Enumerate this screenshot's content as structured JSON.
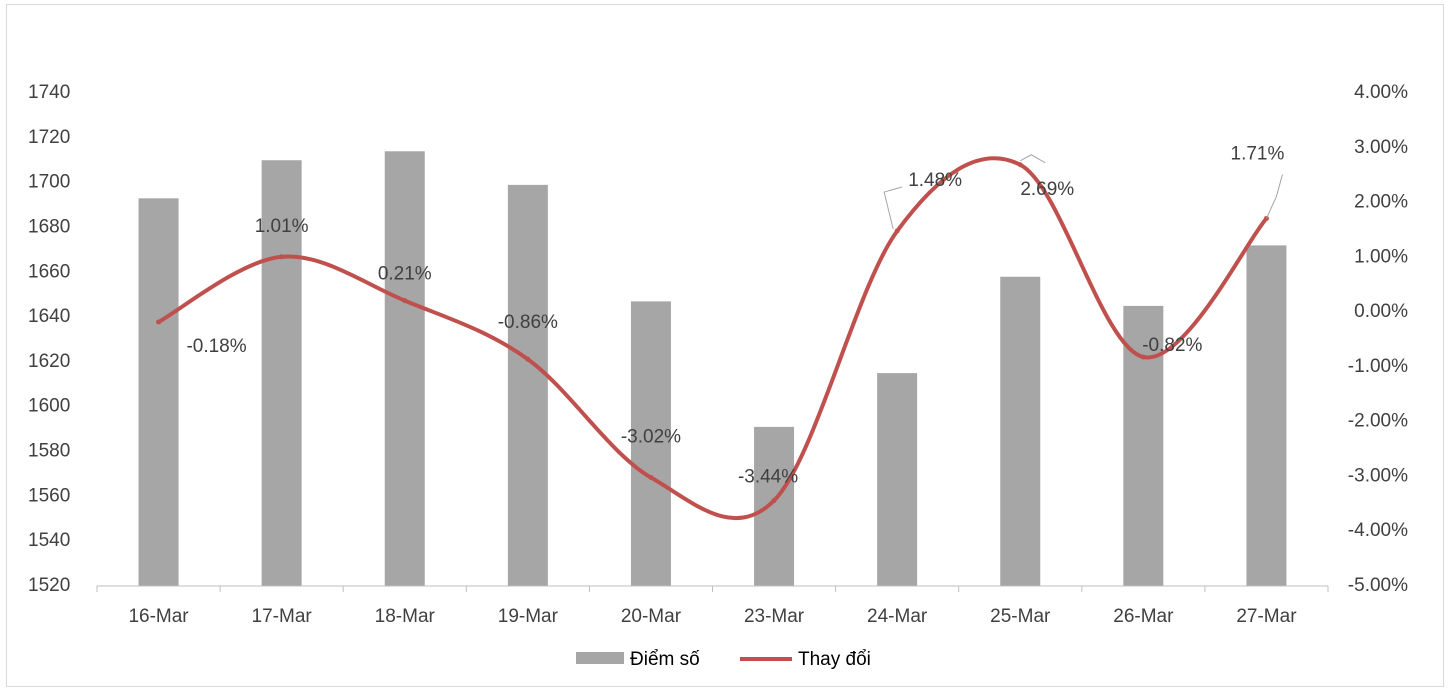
{
  "chart_data": {
    "type": "bar",
    "categories": [
      "16-Mar",
      "17-Mar",
      "18-Mar",
      "19-Mar",
      "20-Mar",
      "23-Mar",
      "24-Mar",
      "25-Mar",
      "26-Mar",
      "27-Mar"
    ],
    "series": [
      {
        "name": "Điểm số",
        "type": "bar",
        "axis": "left",
        "color": "#a6a6a6",
        "values": [
          1693,
          1710,
          1714,
          1699,
          1647,
          1591,
          1615,
          1658,
          1645,
          1672
        ]
      },
      {
        "name": "Thay đổi",
        "type": "line",
        "smooth": true,
        "axis": "right",
        "color": "#c0504d",
        "values": [
          -0.18,
          1.01,
          0.21,
          -0.86,
          -3.02,
          -3.44,
          1.48,
          2.69,
          -0.82,
          1.71
        ],
        "labels": [
          "-0.18%",
          "1.01%",
          "0.21%",
          "-0.86%",
          "-3.02%",
          "-3.44%",
          "1.48%",
          "2.69%",
          "-0.82%",
          "1.71%"
        ]
      }
    ],
    "y_left": {
      "min": 1520,
      "max": 1740,
      "step": 20,
      "ticks": [
        "1520",
        "1540",
        "1560",
        "1580",
        "1600",
        "1620",
        "1640",
        "1660",
        "1680",
        "1700",
        "1720",
        "1740"
      ]
    },
    "y_right": {
      "min": -5,
      "max": 4,
      "step": 1,
      "ticks": [
        "-5.00%",
        "-4.00%",
        "-3.00%",
        "-2.00%",
        "-1.00%",
        "0.00%",
        "1.00%",
        "2.00%",
        "3.00%",
        "4.00%"
      ]
    },
    "grid": false,
    "legend_position": "bottom",
    "title": "",
    "xlabel": "",
    "ylabel": ""
  }
}
